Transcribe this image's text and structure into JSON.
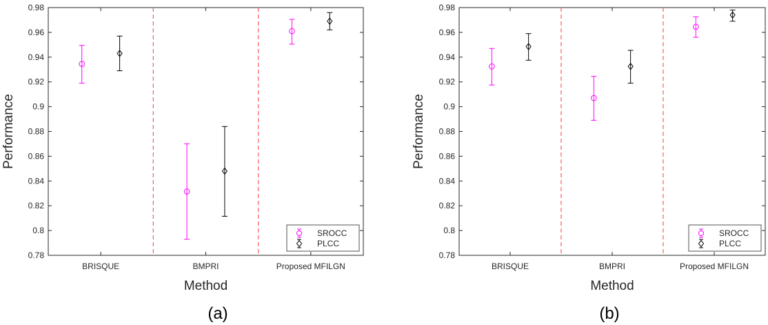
{
  "chart_data": [
    {
      "type": "scatter",
      "panel_label": "(a)",
      "xlabel": "Method",
      "ylabel": "Performance",
      "categories": [
        "BRISQUE",
        "BMPRI",
        "Proposed MFILGN"
      ],
      "ylim": [
        0.78,
        0.98
      ],
      "yticks": [
        "0.78",
        "0.8",
        "0.82",
        "0.84",
        "0.86",
        "0.88",
        "0.9",
        "0.92",
        "0.94",
        "0.96",
        "0.98"
      ],
      "legend_position": "bottom-right",
      "series": [
        {
          "name": "SROCC",
          "color": "#ff00ff",
          "marker": "circle",
          "values": [
            0.9345,
            0.8315,
            0.961
          ],
          "lower": [
            0.919,
            0.793,
            0.9505
          ],
          "upper": [
            0.9495,
            0.87,
            0.9705
          ]
        },
        {
          "name": "PLCC",
          "color": "#000000",
          "marker": "diamond",
          "values": [
            0.943,
            0.848,
            0.969
          ],
          "lower": [
            0.929,
            0.8115,
            0.962
          ],
          "upper": [
            0.957,
            0.884,
            0.976
          ]
        }
      ]
    },
    {
      "type": "scatter",
      "panel_label": "(b)",
      "xlabel": "Method",
      "ylabel": "Performance",
      "categories": [
        "BRISQUE",
        "BMPRI",
        "Proposed MFILGN"
      ],
      "ylim": [
        0.78,
        0.98
      ],
      "yticks": [
        "0.78",
        "0.8",
        "0.82",
        "0.84",
        "0.86",
        "0.88",
        "0.9",
        "0.92",
        "0.94",
        "0.96",
        "0.98"
      ],
      "legend_position": "bottom-right",
      "series": [
        {
          "name": "SROCC",
          "color": "#ff00ff",
          "marker": "circle",
          "values": [
            0.9325,
            0.907,
            0.9645
          ],
          "lower": [
            0.9175,
            0.889,
            0.956
          ],
          "upper": [
            0.947,
            0.9245,
            0.9725
          ]
        },
        {
          "name": "PLCC",
          "color": "#000000",
          "marker": "diamond",
          "values": [
            0.9485,
            0.9325,
            0.974
          ],
          "lower": [
            0.9375,
            0.919,
            0.969
          ],
          "upper": [
            0.959,
            0.9455,
            0.978
          ]
        }
      ]
    }
  ]
}
